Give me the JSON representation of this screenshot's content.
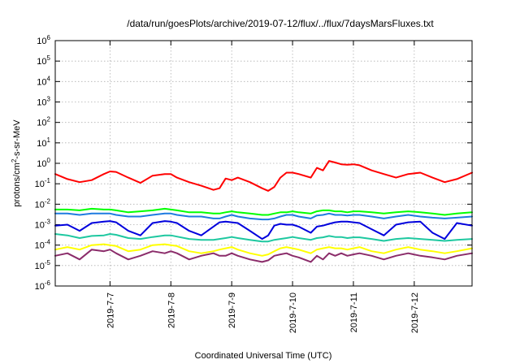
{
  "chart_data": {
    "type": "line",
    "title": "/data/run/goesPlots/archive/2019-07-12/flux/../flux/7daysMarsFluxes.txt",
    "xlabel": "Coordinated Universal Time (UTC)",
    "ylabel": {
      "pre": "protons/cm",
      "sup": "2",
      "post": "-s-sr-MeV"
    },
    "yscale": "log",
    "ylim_exp": [
      -6,
      6
    ],
    "y_tick_base": "10",
    "y_tick_exponents": [
      "-6",
      "-5",
      "-4",
      "-3",
      "-2",
      "-1",
      "0",
      "1",
      "2",
      "3",
      "4",
      "5",
      "6"
    ],
    "xlim": [
      6.1,
      12.95
    ],
    "x_ticks": [
      {
        "x": 7,
        "label": "2019-7-7"
      },
      {
        "x": 8,
        "label": "2019-7-8"
      },
      {
        "x": 9,
        "label": "2019-7-9"
      },
      {
        "x": 10,
        "label": "2019-7-10"
      },
      {
        "x": 11,
        "label": "2019-7-11"
      },
      {
        "x": 12,
        "label": "2019-7-12"
      }
    ],
    "grid": true,
    "x": [
      6.1,
      6.3,
      6.5,
      6.7,
      6.9,
      7.0,
      7.1,
      7.3,
      7.5,
      7.7,
      7.9,
      8.0,
      8.1,
      8.3,
      8.5,
      8.7,
      8.8,
      8.9,
      9.0,
      9.1,
      9.3,
      9.5,
      9.6,
      9.7,
      9.8,
      9.9,
      10.0,
      10.1,
      10.3,
      10.4,
      10.5,
      10.6,
      10.7,
      10.8,
      10.9,
      11.0,
      11.1,
      11.3,
      11.5,
      11.7,
      11.9,
      12.1,
      12.3,
      12.5,
      12.7,
      12.95
    ],
    "series": [
      {
        "color": "#ff0000",
        "values": [
          0.3,
          0.17,
          0.12,
          0.15,
          0.3,
          0.4,
          0.38,
          0.2,
          0.11,
          0.25,
          0.3,
          0.3,
          0.2,
          0.12,
          0.08,
          0.05,
          0.06,
          0.18,
          0.15,
          0.2,
          0.12,
          0.06,
          0.045,
          0.07,
          0.2,
          0.35,
          0.35,
          0.3,
          0.2,
          0.6,
          0.45,
          1.3,
          1.1,
          0.9,
          0.85,
          0.9,
          0.8,
          0.45,
          0.3,
          0.2,
          0.3,
          0.35,
          0.2,
          0.12,
          0.17,
          0.35
        ]
      },
      {
        "color": "#00ff00",
        "values": [
          0.0055,
          0.0055,
          0.005,
          0.006,
          0.0055,
          0.0055,
          0.005,
          0.004,
          0.0045,
          0.005,
          0.006,
          0.0055,
          0.005,
          0.004,
          0.004,
          0.0035,
          0.0035,
          0.004,
          0.0045,
          0.004,
          0.0035,
          0.003,
          0.003,
          0.0035,
          0.004,
          0.004,
          0.0045,
          0.004,
          0.0035,
          0.0045,
          0.005,
          0.005,
          0.0045,
          0.0045,
          0.004,
          0.0045,
          0.0045,
          0.004,
          0.0035,
          0.004,
          0.0045,
          0.004,
          0.0035,
          0.003,
          0.0035,
          0.004
        ]
      },
      {
        "color": "#1e7be0",
        "values": [
          0.0035,
          0.0035,
          0.003,
          0.0035,
          0.0035,
          0.0035,
          0.003,
          0.0025,
          0.0025,
          0.003,
          0.0035,
          0.0035,
          0.003,
          0.0025,
          0.0025,
          0.002,
          0.002,
          0.0025,
          0.003,
          0.0025,
          0.002,
          0.0018,
          0.0018,
          0.002,
          0.0025,
          0.003,
          0.003,
          0.0025,
          0.002,
          0.0028,
          0.003,
          0.0035,
          0.003,
          0.003,
          0.0028,
          0.003,
          0.003,
          0.0025,
          0.002,
          0.0025,
          0.003,
          0.0025,
          0.0022,
          0.002,
          0.0022,
          0.0025
        ]
      },
      {
        "color": "#0000dd",
        "values": [
          0.0009,
          0.001,
          0.0005,
          0.0012,
          0.0014,
          0.0015,
          0.0013,
          0.0005,
          0.0003,
          0.0012,
          0.0015,
          0.0014,
          0.0012,
          0.0005,
          0.0003,
          0.0008,
          0.0013,
          0.0014,
          0.0013,
          0.0012,
          0.0005,
          0.0002,
          0.0003,
          0.0009,
          0.0011,
          0.001,
          0.001,
          0.0008,
          0.0004,
          0.0008,
          0.0009,
          0.0011,
          0.0013,
          0.0014,
          0.0014,
          0.0013,
          0.0012,
          0.0006,
          0.0003,
          0.001,
          0.0013,
          0.0014,
          0.0004,
          0.0002,
          0.0012,
          0.0009
        ]
      },
      {
        "color": "#1ec8a0",
        "values": [
          0.00035,
          0.0003,
          0.00022,
          0.00028,
          0.0003,
          0.00035,
          0.00032,
          0.00022,
          0.0002,
          0.00025,
          0.0003,
          0.0003,
          0.00026,
          0.0002,
          0.00018,
          0.00018,
          0.0002,
          0.00022,
          0.00025,
          0.00022,
          0.00018,
          0.00015,
          0.00015,
          0.00018,
          0.0002,
          0.00022,
          0.00025,
          0.00022,
          0.00018,
          0.00022,
          0.00024,
          0.00028,
          0.00025,
          0.00025,
          0.00022,
          0.00024,
          0.00024,
          0.0002,
          0.00016,
          0.0002,
          0.00022,
          0.0002,
          0.00018,
          0.00016,
          0.00018,
          0.0002
        ]
      },
      {
        "color": "#ffff00",
        "values": [
          6e-05,
          8e-05,
          6e-05,
          0.0001,
          0.00011,
          0.0001,
          9e-05,
          5e-05,
          6e-05,
          0.0001,
          0.00011,
          0.0001,
          9e-05,
          5e-05,
          4e-05,
          5e-05,
          6e-05,
          7e-05,
          8e-05,
          6e-05,
          4e-05,
          3e-05,
          3.5e-05,
          5e-05,
          7e-05,
          8e-05,
          7e-05,
          6e-05,
          4e-05,
          6e-05,
          7e-05,
          8e-05,
          7e-05,
          7e-05,
          6e-05,
          7e-05,
          8e-05,
          5e-05,
          4e-05,
          6e-05,
          8e-05,
          6e-05,
          5e-05,
          4e-05,
          5e-05,
          7e-05
        ]
      },
      {
        "color": "#8b2c6a",
        "values": [
          3e-05,
          4e-05,
          2e-05,
          6e-05,
          5e-05,
          6e-05,
          4e-05,
          2e-05,
          3e-05,
          5e-05,
          4e-05,
          5e-05,
          4e-05,
          2e-05,
          3e-05,
          4e-05,
          3e-05,
          3e-05,
          4e-05,
          3e-05,
          2e-05,
          1.5e-05,
          1.8e-05,
          3e-05,
          3.5e-05,
          4e-05,
          3e-05,
          2.5e-05,
          1.5e-05,
          3e-05,
          2e-05,
          4e-05,
          3e-05,
          4e-05,
          3e-05,
          3.5e-05,
          4e-05,
          3e-05,
          2e-05,
          3e-05,
          4e-05,
          3e-05,
          2.5e-05,
          2e-05,
          3e-05,
          4e-05
        ]
      }
    ]
  }
}
